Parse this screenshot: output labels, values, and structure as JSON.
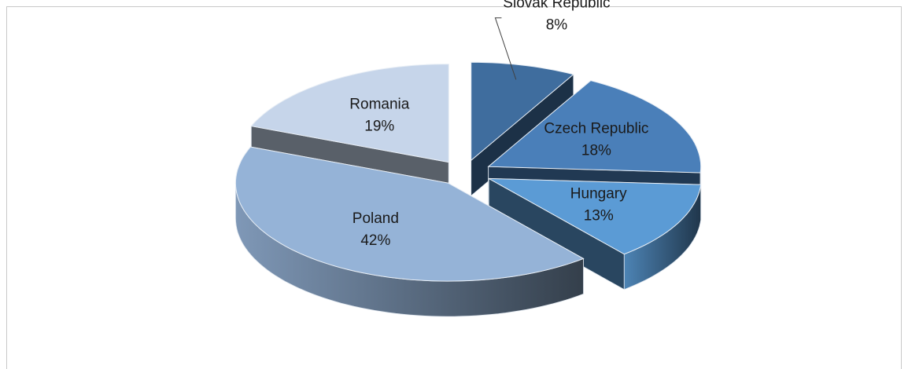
{
  "chart_data": {
    "type": "pie3d",
    "categories": [
      "Slovak Republic",
      "Czech Republic",
      "Hungary",
      "Poland",
      "Romania"
    ],
    "values": [
      8,
      18,
      13,
      42,
      19
    ],
    "value_labels": [
      "8%",
      "18%",
      "13%",
      "42%",
      "19%"
    ],
    "colors": [
      "#3f6d9e",
      "#4a7fb9",
      "#5b9bd5",
      "#95b3d7",
      "#c6d5ea"
    ]
  }
}
